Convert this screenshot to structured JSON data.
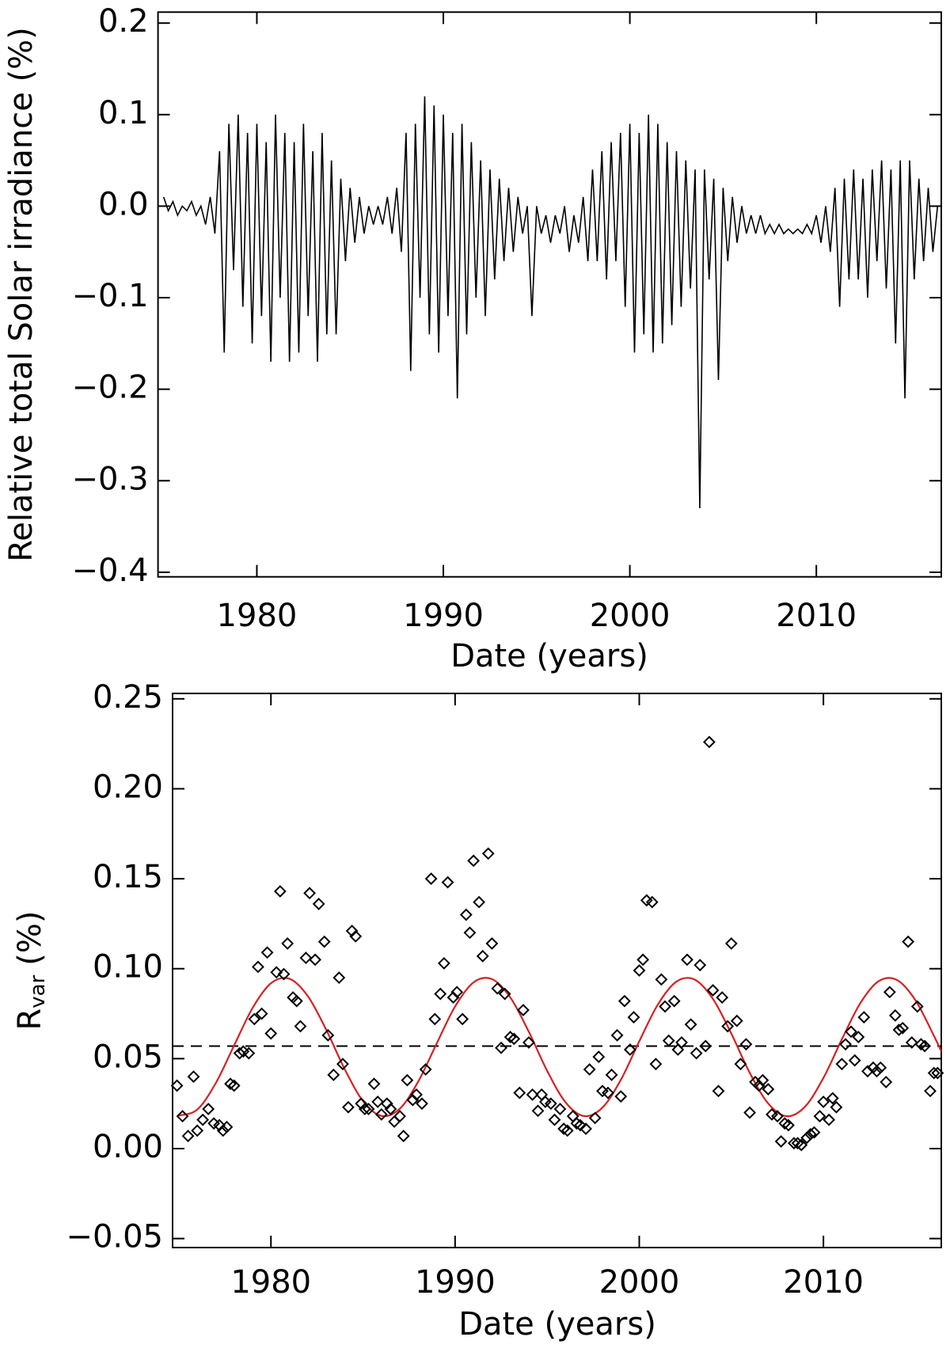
{
  "chart_data": [
    {
      "type": "line",
      "xlabel": "Date (years)",
      "ylabel": "Relative total Solar irradiance (%)",
      "xlim": [
        1974.7,
        2016.7
      ],
      "xticks": [
        1980,
        1990,
        2000,
        2010
      ],
      "ylim": [
        -0.405,
        0.212
      ],
      "yticks": [
        0.2,
        0.1,
        {
          "value": 0,
          "label": "0.0"
        },
        {
          "value": -0.1,
          "label": "−0.1"
        },
        {
          "value": -0.2,
          "label": "−0.2"
        },
        {
          "value": -0.3,
          "label": "−0.3"
        },
        {
          "value": -0.4,
          "label": "−0.4"
        }
      ],
      "color": "#000000",
      "x": [
        1975,
        1975.25,
        1975.5,
        1975.75,
        1976,
        1976.25,
        1976.5,
        1976.75,
        1977,
        1977.25,
        1977.5,
        1977.75,
        1978,
        1978.25,
        1978.5,
        1978.75,
        1979,
        1979.25,
        1979.5,
        1979.75,
        1980,
        1980.25,
        1980.5,
        1980.75,
        1981,
        1981.25,
        1981.5,
        1981.75,
        1982,
        1982.25,
        1982.5,
        1982.75,
        1983,
        1983.25,
        1983.5,
        1983.75,
        1984,
        1984.25,
        1984.5,
        1984.75,
        1985,
        1985.25,
        1985.5,
        1985.75,
        1986,
        1986.25,
        1986.5,
        1986.75,
        1987,
        1987.25,
        1987.5,
        1987.75,
        1988,
        1988.25,
        1988.5,
        1988.75,
        1989,
        1989.25,
        1989.5,
        1989.75,
        1990,
        1990.25,
        1990.5,
        1990.75,
        1991,
        1991.25,
        1991.5,
        1991.75,
        1992,
        1992.25,
        1992.5,
        1992.75,
        1993,
        1993.25,
        1993.5,
        1993.75,
        1994,
        1994.25,
        1994.5,
        1994.75,
        1995,
        1995.25,
        1995.5,
        1995.75,
        1996,
        1996.25,
        1996.5,
        1996.75,
        1997,
        1997.25,
        1997.5,
        1997.75,
        1998,
        1998.25,
        1998.5,
        1998.75,
        1999,
        1999.25,
        1999.5,
        1999.75,
        2000,
        2000.25,
        2000.5,
        2000.75,
        2001,
        2001.25,
        2001.5,
        2001.75,
        2002,
        2002.25,
        2002.5,
        2002.75,
        2003,
        2003.25,
        2003.5,
        2003.75,
        2004,
        2004.25,
        2004.5,
        2004.75,
        2005,
        2005.25,
        2005.5,
        2005.75,
        2006,
        2006.25,
        2006.5,
        2006.75,
        2007,
        2007.25,
        2007.5,
        2007.75,
        2008,
        2008.25,
        2008.5,
        2008.75,
        2009,
        2009.25,
        2009.5,
        2009.75,
        2010,
        2010.25,
        2010.5,
        2010.75,
        2011,
        2011.25,
        2011.5,
        2011.75,
        2012,
        2012.25,
        2012.5,
        2012.75,
        2013,
        2013.25,
        2013.5,
        2013.75,
        2014,
        2014.25,
        2014.5,
        2014.75,
        2015,
        2015.25,
        2015.5,
        2015.75,
        2016,
        2016.25,
        2016.5
      ],
      "values": [
        0.01,
        -0.005,
        0.005,
        -0.01,
        0.0,
        -0.005,
        0.005,
        -0.01,
        0.0,
        -0.02,
        0.01,
        -0.03,
        0.06,
        -0.16,
        0.09,
        -0.07,
        0.1,
        -0.11,
        0.08,
        -0.15,
        0.09,
        -0.12,
        0.07,
        -0.17,
        0.1,
        -0.1,
        0.08,
        -0.17,
        0.07,
        -0.16,
        0.09,
        -0.12,
        0.06,
        -0.17,
        0.08,
        -0.14,
        0.05,
        -0.14,
        0.03,
        -0.06,
        0.02,
        -0.04,
        0.01,
        -0.03,
        0.0,
        -0.02,
        0.0,
        -0.02,
        0.01,
        -0.03,
        0.02,
        -0.05,
        0.08,
        -0.18,
        0.09,
        -0.1,
        0.12,
        -0.14,
        0.11,
        -0.16,
        0.1,
        -0.12,
        0.08,
        -0.21,
        0.09,
        -0.14,
        0.07,
        -0.1,
        0.05,
        -0.12,
        0.04,
        -0.08,
        0.03,
        -0.06,
        0.02,
        -0.05,
        0.01,
        -0.03,
        0.0,
        -0.12,
        0.0,
        -0.03,
        -0.01,
        -0.04,
        -0.01,
        -0.03,
        0.0,
        -0.05,
        -0.01,
        -0.04,
        0.01,
        -0.06,
        0.04,
        -0.06,
        0.06,
        -0.08,
        0.07,
        -0.06,
        0.08,
        -0.11,
        0.09,
        -0.16,
        0.08,
        -0.14,
        0.1,
        -0.16,
        0.09,
        -0.15,
        0.07,
        -0.13,
        0.06,
        -0.11,
        0.05,
        -0.09,
        0.04,
        -0.33,
        0.04,
        -0.08,
        0.03,
        -0.19,
        0.02,
        -0.06,
        0.01,
        -0.04,
        0.0,
        -0.03,
        -0.01,
        -0.03,
        -0.01,
        -0.03,
        -0.02,
        -0.03,
        -0.02,
        -0.03,
        -0.025,
        -0.03,
        -0.025,
        -0.03,
        -0.02,
        -0.03,
        -0.01,
        -0.04,
        0.0,
        -0.05,
        0.02,
        -0.11,
        0.03,
        -0.08,
        0.04,
        -0.08,
        0.03,
        -0.1,
        0.04,
        -0.06,
        0.05,
        -0.09,
        0.04,
        -0.15,
        0.05,
        -0.21,
        0.05,
        -0.08,
        0.03,
        -0.06,
        0.02,
        -0.05,
        0.0
      ]
    },
    {
      "type": "scatter",
      "xlabel": "Date (years)",
      "ylabel": "R",
      "ylabel_sub": "var",
      "ylabel_suffix": "(%)",
      "xlim": [
        1974.66,
        2016.4
      ],
      "xticks": [
        1980,
        1990,
        2000,
        2010
      ],
      "ylim": [
        -0.055,
        0.253
      ],
      "yticks": [
        0.25,
        {
          "value": 0.2,
          "label": "0.20"
        },
        0.15,
        {
          "value": 0.1,
          "label": "0.10"
        },
        0.05,
        {
          "value": 0,
          "label": "0.00"
        },
        {
          "value": -0.05,
          "label": "−0.05"
        }
      ],
      "color": "#000000",
      "x": [
        1974.9,
        1975.2,
        1975.5,
        1975.8,
        1976.0,
        1976.3,
        1976.6,
        1976.9,
        1977.2,
        1977.4,
        1977.6,
        1977.8,
        1978.0,
        1978.3,
        1978.5,
        1978.8,
        1979.1,
        1979.3,
        1979.5,
        1979.8,
        1980.0,
        1980.3,
        1980.5,
        1980.7,
        1980.9,
        1981.2,
        1981.4,
        1981.6,
        1981.9,
        1982.1,
        1982.4,
        1982.6,
        1982.9,
        1983.1,
        1983.4,
        1983.7,
        1983.9,
        1984.2,
        1984.4,
        1984.6,
        1984.9,
        1985.1,
        1985.3,
        1985.6,
        1985.8,
        1986.0,
        1986.3,
        1986.5,
        1986.7,
        1987.0,
        1987.2,
        1987.4,
        1987.7,
        1987.9,
        1988.2,
        1988.4,
        1988.7,
        1988.9,
        1989.2,
        1989.4,
        1989.6,
        1989.9,
        1990.1,
        1990.4,
        1990.6,
        1990.8,
        1991.0,
        1991.3,
        1991.5,
        1991.8,
        1992.0,
        1992.3,
        1992.5,
        1992.7,
        1993.0,
        1993.2,
        1993.5,
        1993.7,
        1994.0,
        1994.2,
        1994.5,
        1994.7,
        1994.9,
        1995.2,
        1995.4,
        1995.7,
        1995.9,
        1996.1,
        1996.4,
        1996.6,
        1996.8,
        1997.1,
        1997.3,
        1997.6,
        1997.8,
        1998.0,
        1998.3,
        1998.5,
        1998.8,
        1999.0,
        1999.2,
        1999.5,
        1999.7,
        2000.0,
        2000.2,
        2000.4,
        2000.7,
        2000.9,
        2001.2,
        2001.4,
        2001.6,
        2001.9,
        2002.1,
        2002.3,
        2002.6,
        2002.8,
        2003.1,
        2003.3,
        2003.6,
        2003.8,
        2004.0,
        2004.3,
        2004.5,
        2004.8,
        2005.0,
        2005.3,
        2005.5,
        2005.8,
        2006.0,
        2006.3,
        2006.5,
        2006.7,
        2007.0,
        2007.2,
        2007.5,
        2007.7,
        2007.9,
        2008.1,
        2008.4,
        2008.6,
        2008.8,
        2009.1,
        2009.3,
        2009.5,
        2009.8,
        2010.0,
        2010.3,
        2010.5,
        2010.7,
        2011.0,
        2011.2,
        2011.5,
        2011.7,
        2011.9,
        2012.2,
        2012.4,
        2012.7,
        2012.9,
        2013.1,
        2013.4,
        2013.6,
        2013.9,
        2014.1,
        2014.3,
        2014.6,
        2014.8,
        2015.1,
        2015.3,
        2015.5,
        2015.8,
        2016.0,
        2016.2
      ],
      "values": [
        0.035,
        0.018,
        0.007,
        0.04,
        0.01,
        0.016,
        0.022,
        0.014,
        0.013,
        0.01,
        0.012,
        0.036,
        0.035,
        0.053,
        0.054,
        0.053,
        0.072,
        0.101,
        0.075,
        0.109,
        0.064,
        0.098,
        0.143,
        0.097,
        0.114,
        0.084,
        0.082,
        0.068,
        0.106,
        0.142,
        0.105,
        0.136,
        0.115,
        0.063,
        0.041,
        0.095,
        0.047,
        0.023,
        0.121,
        0.118,
        0.025,
        0.022,
        0.022,
        0.036,
        0.026,
        0.019,
        0.025,
        0.022,
        0.015,
        0.018,
        0.007,
        0.038,
        0.027,
        0.03,
        0.025,
        0.044,
        0.15,
        0.072,
        0.086,
        0.103,
        0.148,
        0.084,
        0.087,
        0.072,
        0.13,
        0.12,
        0.16,
        0.137,
        0.107,
        0.164,
        0.114,
        0.089,
        0.056,
        0.086,
        0.062,
        0.061,
        0.031,
        0.077,
        0.059,
        0.03,
        0.021,
        0.03,
        0.026,
        0.025,
        0.016,
        0.022,
        0.011,
        0.01,
        0.018,
        0.014,
        0.013,
        0.011,
        0.044,
        0.017,
        0.051,
        0.032,
        0.031,
        0.041,
        0.063,
        0.029,
        0.082,
        0.055,
        0.073,
        0.099,
        0.105,
        0.138,
        0.137,
        0.047,
        0.094,
        0.079,
        0.06,
        0.082,
        0.055,
        0.059,
        0.105,
        0.069,
        0.053,
        0.102,
        0.057,
        0.226,
        0.088,
        0.032,
        0.084,
        0.068,
        0.114,
        0.071,
        0.047,
        0.058,
        0.02,
        0.037,
        0.035,
        0.038,
        0.033,
        0.019,
        0.018,
        0.004,
        0.014,
        0.013,
        0.003,
        0.003,
        0.002,
        0.006,
        0.008,
        0.009,
        0.018,
        0.026,
        0.016,
        0.028,
        0.023,
        0.047,
        0.058,
        0.065,
        0.049,
        0.062,
        0.073,
        0.043,
        0.045,
        0.043,
        0.045,
        0.037,
        0.087,
        0.074,
        0.066,
        0.067,
        0.115,
        0.059,
        0.079,
        0.058,
        0.057,
        0.032,
        0.042,
        0.042
      ],
      "fit": {
        "color": "#d62020",
        "x": [
          1975,
          1976,
          1977,
          1978,
          1979,
          1980,
          1981,
          1982,
          1983,
          1984,
          1985,
          1986,
          1987,
          1988,
          1989,
          1990,
          1991,
          1992,
          1993,
          1994,
          1995,
          1996,
          1997,
          1998,
          1999,
          2000,
          2001,
          2002,
          2003,
          2004,
          2005,
          2006,
          2007,
          2008,
          2009,
          2010,
          2011,
          2012,
          2013,
          2014,
          2015,
          2016,
          2016.4
        ],
        "values": [
          0.0183,
          0.0217,
          0.0363,
          0.0573,
          0.0781,
          0.0919,
          0.0944,
          0.0848,
          0.0661,
          0.0443,
          0.0264,
          0.0182,
          0.0222,
          0.0373,
          0.0584,
          0.079,
          0.0924,
          0.0942,
          0.084,
          0.065,
          0.0432,
          0.0257,
          0.0181,
          0.0228,
          0.0382,
          0.0596,
          0.0799,
          0.0927,
          0.094,
          0.0832,
          0.0639,
          0.0421,
          0.0251,
          0.018,
          0.0233,
          0.0393,
          0.0607,
          0.0808,
          0.0931,
          0.0937,
          0.0824,
          0.0627,
          0.054
        ]
      },
      "reference_line": {
        "value": 0.057,
        "style": "dashed",
        "color": "#000000"
      }
    }
  ]
}
